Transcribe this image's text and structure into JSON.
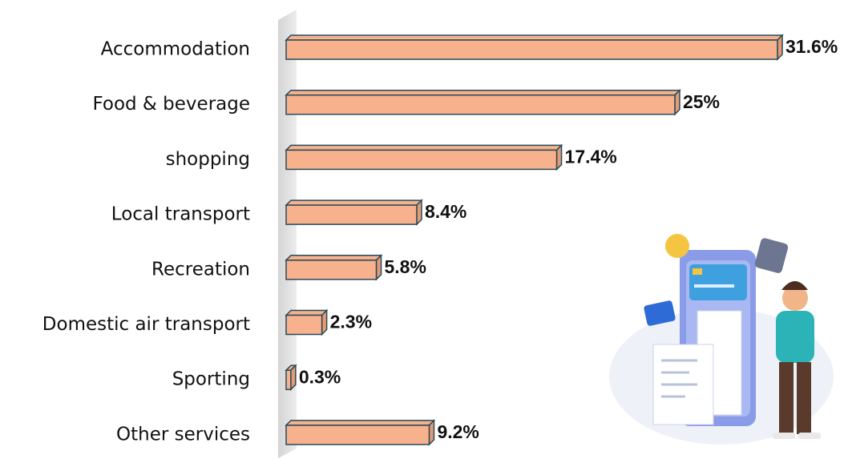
{
  "chart_data": {
    "type": "bar",
    "orientation": "horizontal",
    "categories": [
      "Accommodation",
      "Food & beverage",
      "shopping",
      "Local transport",
      "Recreation",
      "Domestic air transport",
      "Sporting",
      "Other services"
    ],
    "values": [
      31.6,
      25,
      17.4,
      8.4,
      5.8,
      2.3,
      0.3,
      9.2
    ],
    "value_labels": [
      "31.6%",
      "25%",
      "17.4%",
      "8.4%",
      "5.8%",
      "2.3%",
      "0.3%",
      "9.2%"
    ],
    "color": "#f7b18d",
    "edge_color": "#244b5a"
  }
}
